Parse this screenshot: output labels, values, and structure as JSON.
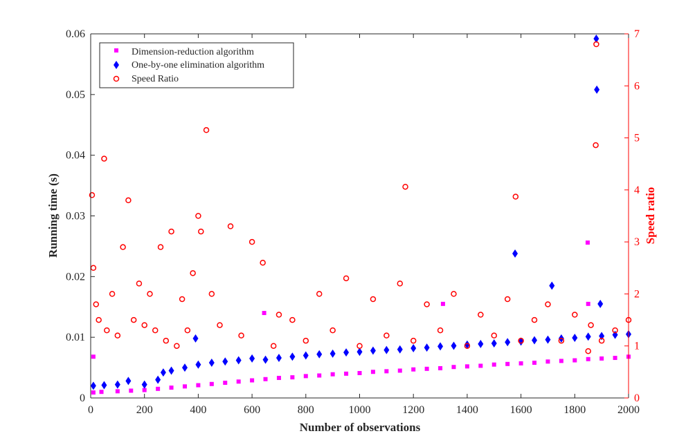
{
  "chart_data": {
    "type": "scatter",
    "xlabel": "Number of observations",
    "ylabel_left": "Running time (s)",
    "ylabel_right": "Speed ratio",
    "xlim": [
      0,
      2000
    ],
    "ylim_left": [
      0,
      0.06
    ],
    "ylim_right": [
      0,
      7
    ],
    "xticks": [
      0,
      200,
      400,
      600,
      800,
      1000,
      1200,
      1400,
      1600,
      1800,
      2000
    ],
    "yticks_left": [
      0,
      0.01,
      0.02,
      0.03,
      0.04,
      0.05,
      0.06
    ],
    "yticks_right": [
      0,
      1,
      2,
      3,
      4,
      5,
      6,
      7
    ],
    "xtick_labels": [
      "0",
      "200",
      "400",
      "600",
      "800",
      "1000",
      "1200",
      "1400",
      "1600",
      "1800",
      "2000"
    ],
    "ytick_left_labels": [
      "0",
      "0.01",
      "0.02",
      "0.03",
      "0.04",
      "0.05",
      "0.06"
    ],
    "ytick_right_labels": [
      "0",
      "1",
      "2",
      "3",
      "4",
      "5",
      "6",
      "7"
    ],
    "grid": false,
    "legend_position": "top-left",
    "colors": {
      "dimension": "#ff00ff",
      "elimination": "#0000ff",
      "ratio": "#ff0000",
      "axis": "#262626",
      "right_axis": "#ff0000"
    },
    "series": [
      {
        "name": "Dimension-reduction algorithm",
        "marker": "square",
        "axis": "left",
        "x": [
          10,
          40,
          100,
          150,
          200,
          250,
          300,
          350,
          400,
          450,
          500,
          550,
          600,
          650,
          700,
          750,
          800,
          850,
          900,
          950,
          1000,
          1050,
          1100,
          1150,
          1200,
          1250,
          1300,
          1350,
          1400,
          1450,
          1500,
          1550,
          1600,
          1650,
          1700,
          1750,
          1800,
          1850,
          1900,
          1950,
          2000,
          10,
          645,
          1310,
          1848,
          1850
        ],
        "y": [
          0.0009,
          0.001,
          0.0011,
          0.0012,
          0.0013,
          0.0015,
          0.0017,
          0.0019,
          0.0021,
          0.0023,
          0.0025,
          0.0027,
          0.0029,
          0.0031,
          0.0033,
          0.0034,
          0.0036,
          0.0037,
          0.0039,
          0.004,
          0.0041,
          0.0043,
          0.0044,
          0.0045,
          0.0047,
          0.0048,
          0.0049,
          0.0051,
          0.0052,
          0.0053,
          0.0055,
          0.0056,
          0.0057,
          0.0058,
          0.006,
          0.0061,
          0.0062,
          0.0064,
          0.0065,
          0.0066,
          0.0068,
          0.0068,
          0.014,
          0.0155,
          0.0256,
          0.0155
        ]
      },
      {
        "name": "One-by-one elimination algorithm",
        "marker": "diamond",
        "axis": "left",
        "x": [
          10,
          50,
          100,
          140,
          200,
          250,
          270,
          300,
          350,
          390,
          400,
          450,
          500,
          550,
          600,
          650,
          700,
          750,
          800,
          850,
          900,
          950,
          1000,
          1050,
          1100,
          1150,
          1200,
          1250,
          1300,
          1350,
          1400,
          1450,
          1500,
          1550,
          1600,
          1650,
          1700,
          1750,
          1800,
          1850,
          1900,
          1950,
          2000,
          1578,
          1715,
          1880,
          1882,
          1895
        ],
        "y": [
          0.002,
          0.0021,
          0.0022,
          0.0028,
          0.0022,
          0.003,
          0.0042,
          0.0045,
          0.005,
          0.0098,
          0.0055,
          0.0058,
          0.006,
          0.0062,
          0.0065,
          0.0063,
          0.0066,
          0.0068,
          0.007,
          0.0072,
          0.0073,
          0.0075,
          0.0076,
          0.0078,
          0.0079,
          0.008,
          0.0082,
          0.0083,
          0.0085,
          0.0086,
          0.0088,
          0.0089,
          0.009,
          0.0092,
          0.0093,
          0.0095,
          0.0096,
          0.0098,
          0.0099,
          0.0101,
          0.0102,
          0.0104,
          0.0105,
          0.0238,
          0.0185,
          0.0592,
          0.0508,
          0.0155
        ]
      },
      {
        "name": "Speed Ratio",
        "marker": "circle",
        "axis": "right",
        "x": [
          5,
          10,
          20,
          30,
          50,
          60,
          80,
          100,
          120,
          140,
          160,
          180,
          200,
          220,
          240,
          260,
          280,
          300,
          320,
          340,
          360,
          380,
          400,
          410,
          430,
          450,
          480,
          520,
          560,
          600,
          640,
          680,
          700,
          750,
          800,
          850,
          900,
          950,
          1000,
          1050,
          1100,
          1150,
          1170,
          1200,
          1250,
          1300,
          1350,
          1400,
          1450,
          1500,
          1550,
          1580,
          1600,
          1650,
          1700,
          1750,
          1800,
          1850,
          1860,
          1878,
          1880,
          1900,
          1950,
          2000
        ],
        "y": [
          3.9,
          2.5,
          1.8,
          1.5,
          4.6,
          1.3,
          2.0,
          1.2,
          2.9,
          3.8,
          1.5,
          2.2,
          1.4,
          2.0,
          1.3,
          2.9,
          1.1,
          3.2,
          1.0,
          1.9,
          1.3,
          2.4,
          3.5,
          3.2,
          5.15,
          2.0,
          1.4,
          3.3,
          1.2,
          3.0,
          2.6,
          1.0,
          1.6,
          1.5,
          1.1,
          2.0,
          1.3,
          2.3,
          1.0,
          1.9,
          1.2,
          2.2,
          4.06,
          1.1,
          1.8,
          1.3,
          2.0,
          1.0,
          1.6,
          1.2,
          1.9,
          3.87,
          1.1,
          1.5,
          1.8,
          1.1,
          1.6,
          0.9,
          1.4,
          4.86,
          6.8,
          1.1,
          1.3,
          1.5
        ]
      }
    ]
  }
}
